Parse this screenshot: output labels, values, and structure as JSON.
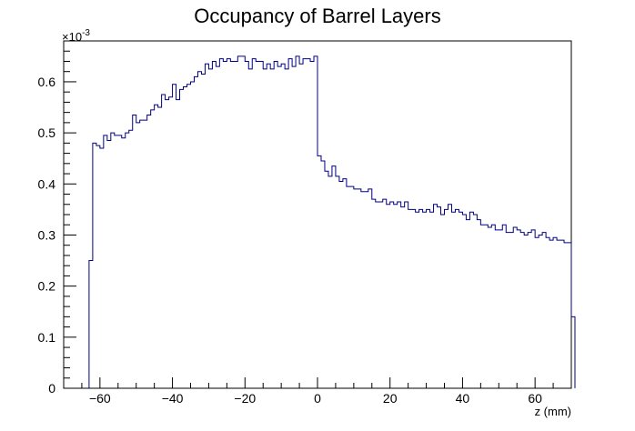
{
  "chart_data": {
    "type": "histogram",
    "title": "Occupancy of Barrel Layers",
    "xlabel": "z (mm)",
    "ylabel": "",
    "y_multiplier_label": "×10",
    "y_multiplier_exponent": "-3",
    "xlim": [
      -70,
      70
    ],
    "ylim": [
      0,
      0.68
    ],
    "x_ticks": [
      -60,
      -40,
      -20,
      0,
      20,
      40,
      60
    ],
    "x_tick_labels": [
      "−60",
      "−40",
      "−20",
      "0",
      "20",
      "40",
      "60"
    ],
    "y_ticks": [
      0,
      0.1,
      0.2,
      0.3,
      0.4,
      0.5,
      0.6
    ],
    "y_tick_labels": [
      "0",
      "0.1",
      "0.2",
      "0.3",
      "0.4",
      "0.5",
      "0.6"
    ],
    "grid": false,
    "line_color": "#000080",
    "bin_start": -63,
    "bin_width": 1,
    "values": [
      0.25,
      0.48,
      0.475,
      0.47,
      0.495,
      0.485,
      0.5,
      0.495,
      0.495,
      0.49,
      0.5,
      0.505,
      0.535,
      0.52,
      0.525,
      0.525,
      0.535,
      0.545,
      0.555,
      0.55,
      0.575,
      0.565,
      0.57,
      0.595,
      0.565,
      0.585,
      0.59,
      0.595,
      0.6,
      0.61,
      0.62,
      0.615,
      0.635,
      0.625,
      0.64,
      0.63,
      0.645,
      0.64,
      0.645,
      0.64,
      0.64,
      0.65,
      0.65,
      0.64,
      0.625,
      0.645,
      0.64,
      0.64,
      0.625,
      0.635,
      0.625,
      0.64,
      0.63,
      0.635,
      0.625,
      0.645,
      0.63,
      0.65,
      0.635,
      0.645,
      0.645,
      0.64,
      0.65,
      0.455,
      0.445,
      0.425,
      0.415,
      0.435,
      0.415,
      0.405,
      0.41,
      0.395,
      0.395,
      0.39,
      0.39,
      0.385,
      0.385,
      0.39,
      0.37,
      0.365,
      0.365,
      0.37,
      0.36,
      0.365,
      0.36,
      0.365,
      0.355,
      0.365,
      0.35,
      0.35,
      0.345,
      0.35,
      0.345,
      0.35,
      0.345,
      0.36,
      0.355,
      0.34,
      0.35,
      0.36,
      0.345,
      0.35,
      0.345,
      0.34,
      0.33,
      0.345,
      0.34,
      0.33,
      0.32,
      0.32,
      0.315,
      0.32,
      0.31,
      0.31,
      0.32,
      0.305,
      0.305,
      0.315,
      0.31,
      0.305,
      0.3,
      0.305,
      0.31,
      0.295,
      0.3,
      0.305,
      0.295,
      0.29,
      0.295,
      0.29,
      0.29,
      0.285,
      0.285,
      0.14
    ]
  }
}
